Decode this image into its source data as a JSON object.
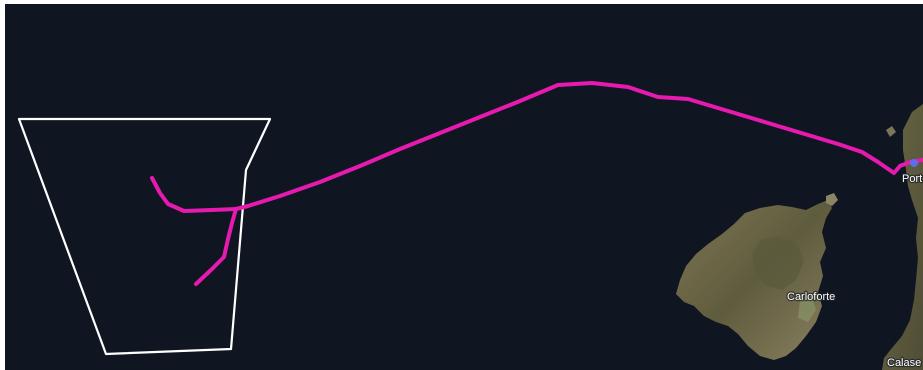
{
  "map": {
    "view": "satellite",
    "colors": {
      "sea": "#0f1622",
      "route": "#e61aae",
      "area_outline": "#ffffff",
      "island_land": "#6f6a49",
      "route_end_marker": "#4d79ff"
    },
    "place_labels": {
      "carloforte": "Carloforte",
      "calasetta": "Calase",
      "portoscuso": "Port"
    },
    "features": {
      "survey_area": "white quadrilateral outline",
      "route": "magenta track line"
    }
  }
}
